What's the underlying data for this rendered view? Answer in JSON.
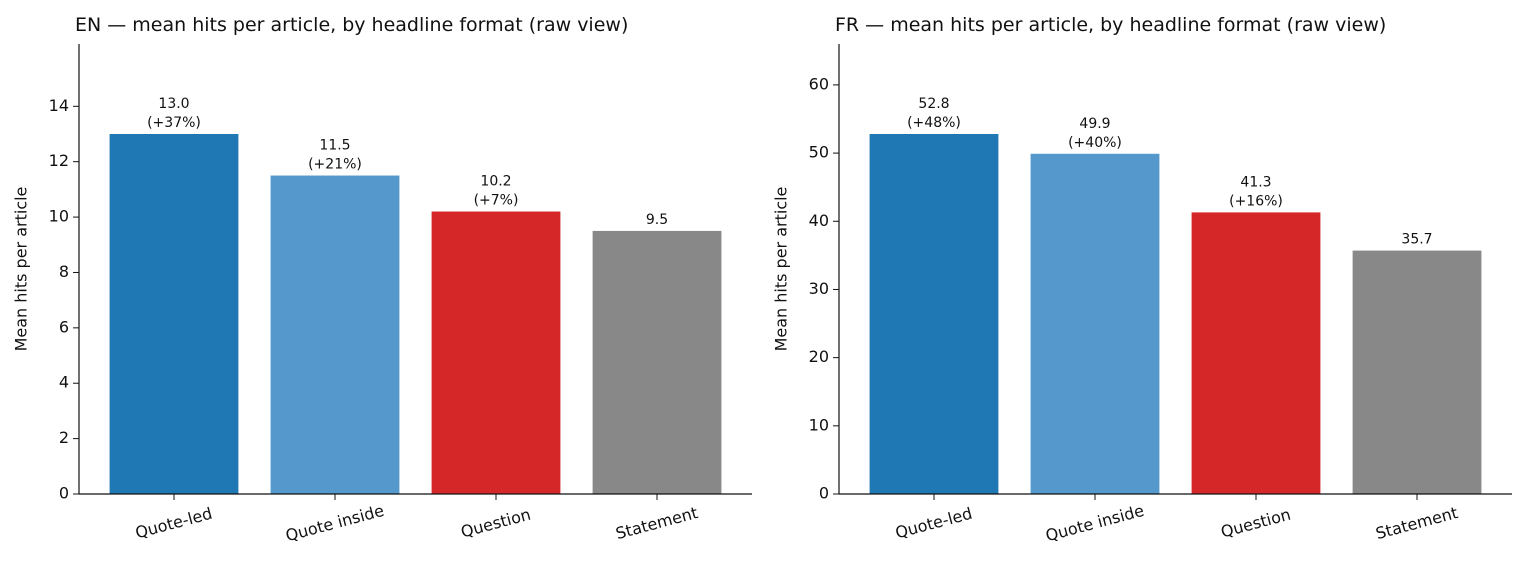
{
  "chart_data": [
    {
      "type": "bar",
      "title": "EN — mean hits per article, by headline format (raw view)",
      "ylabel": "Mean hits per article",
      "categories": [
        "Quote-led",
        "Quote inside",
        "Question",
        "Statement"
      ],
      "values": [
        13.0,
        11.5,
        10.2,
        9.5
      ],
      "value_labels": [
        "13.0",
        "11.5",
        "10.2",
        "9.5"
      ],
      "change_labels": [
        "(+37%)",
        "(+21%)",
        "(+7%)",
        null
      ],
      "colors": [
        "#1f77b4",
        "#5599cc",
        "#d62728",
        "#888888"
      ],
      "ylim": [
        0,
        16.25
      ],
      "yticks": [
        0,
        2,
        4,
        6,
        8,
        10,
        12,
        14
      ]
    },
    {
      "type": "bar",
      "title": "FR — mean hits per article, by headline format (raw view)",
      "ylabel": "Mean hits per article",
      "categories": [
        "Quote-led",
        "Quote inside",
        "Question",
        "Statement"
      ],
      "values": [
        52.8,
        49.9,
        41.3,
        35.7
      ],
      "change_labels": [
        "(+48%)",
        "(+40%)",
        "(+16%)",
        null
      ],
      "colors": [
        "#1f77b4",
        "#5599cc",
        "#d62728",
        "#888888"
      ],
      "ylim": [
        0,
        66
      ],
      "yticks": [
        0,
        10,
        20,
        30,
        40,
        50,
        60
      ]
    }
  ]
}
